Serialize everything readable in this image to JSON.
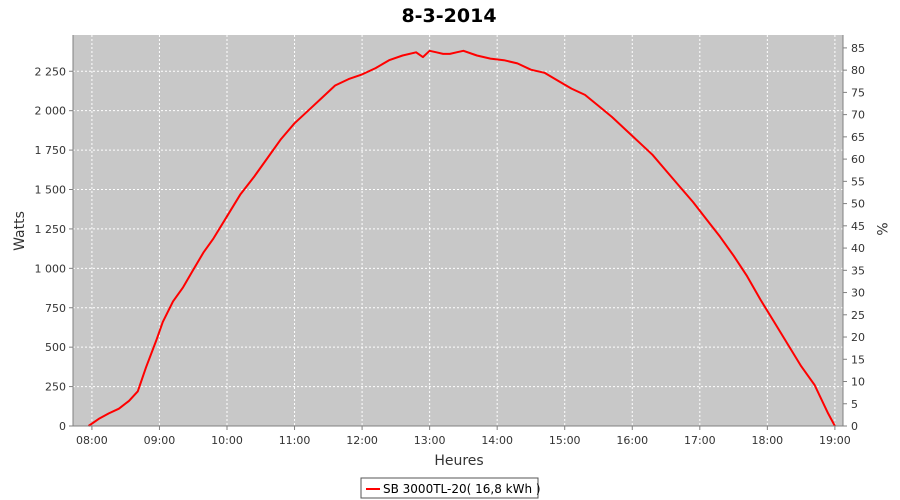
{
  "chart_data": {
    "type": "line",
    "title": "8-3-2014",
    "xlabel": "Heures",
    "ylabel": "Watts",
    "y2label": "%",
    "x_ticks": [
      "08:00",
      "09:00",
      "10:00",
      "11:00",
      "12:00",
      "13:00",
      "14:00",
      "15:00",
      "16:00",
      "17:00",
      "18:00",
      "19:00"
    ],
    "xlim": [
      7.72,
      19.12
    ],
    "ylim": [
      0,
      2480
    ],
    "y_ticks": [
      0,
      250,
      500,
      750,
      1000,
      1250,
      1500,
      1750,
      2000,
      2250
    ],
    "y_tick_labels": [
      "0",
      "250",
      "500",
      "750",
      "1 000",
      "1 250",
      "1 500",
      "1 750",
      "2 000",
      "2 250"
    ],
    "y2lim": [
      0,
      87.9
    ],
    "y2_ticks": [
      0,
      5,
      10,
      15,
      20,
      25,
      30,
      35,
      40,
      45,
      50,
      55,
      60,
      65,
      70,
      75,
      80,
      85
    ],
    "grid": true,
    "background_color": "#c8c8c8",
    "legend_position": "bottom",
    "series": [
      {
        "name": "SB 3000TL-20( 16,8 kWh )",
        "color": "#ff0000",
        "x": [
          7.95,
          8.1,
          8.25,
          8.4,
          8.55,
          8.68,
          8.8,
          8.95,
          9.05,
          9.2,
          9.35,
          9.5,
          9.65,
          9.8,
          10.0,
          10.2,
          10.4,
          10.6,
          10.8,
          11.0,
          11.2,
          11.4,
          11.6,
          11.8,
          12.0,
          12.2,
          12.4,
          12.6,
          12.8,
          12.9,
          13.0,
          13.1,
          13.2,
          13.3,
          13.4,
          13.5,
          13.7,
          13.9,
          14.1,
          14.3,
          14.5,
          14.7,
          14.9,
          15.1,
          15.3,
          15.5,
          15.7,
          15.9,
          16.1,
          16.3,
          16.5,
          16.7,
          16.9,
          17.1,
          17.3,
          17.5,
          17.7,
          17.9,
          18.1,
          18.3,
          18.5,
          18.7,
          18.9,
          19.0
        ],
        "y": [
          0,
          45,
          80,
          110,
          160,
          220,
          370,
          540,
          660,
          790,
          880,
          990,
          1100,
          1190,
          1330,
          1470,
          1580,
          1700,
          1820,
          1920,
          2000,
          2080,
          2160,
          2200,
          2230,
          2270,
          2320,
          2350,
          2370,
          2340,
          2380,
          2370,
          2360,
          2360,
          2370,
          2380,
          2350,
          2330,
          2320,
          2300,
          2260,
          2240,
          2190,
          2140,
          2100,
          2030,
          1960,
          1880,
          1800,
          1720,
          1620,
          1520,
          1420,
          1310,
          1200,
          1080,
          950,
          800,
          660,
          520,
          380,
          260,
          80,
          0
        ]
      }
    ]
  }
}
